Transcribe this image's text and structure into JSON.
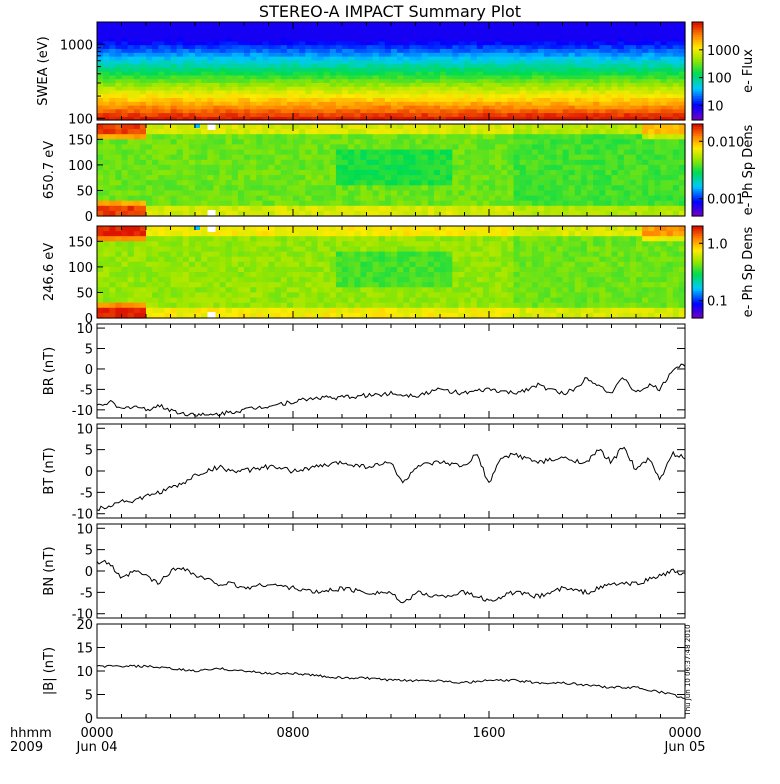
{
  "title": "STEREO-A IMPACT Summary Plot",
  "stamp": "Thu Jun 10 06:37:48 2010",
  "x_axis": {
    "row_label": "hhmm",
    "year_label": "2009",
    "ticks": [
      "0000",
      "0800",
      "1600",
      "0000"
    ],
    "dates": [
      "Jun 04",
      "Jun 05"
    ]
  },
  "chart_data": [
    {
      "type": "heatmap",
      "ylabel": "SWEA (eV)",
      "y_scale": "log",
      "ylim": [
        95,
        2000
      ],
      "yticks": [
        "100",
        "1000"
      ],
      "colorbar_label": "e- Flux",
      "colorbar_ticks": [
        "10",
        "100",
        "1000"
      ],
      "colorbar_range": [
        3,
        10000
      ],
      "description_bands": [
        {
          "energy": 1800,
          "flux": 5
        },
        {
          "energy": 1400,
          "flux": 30
        },
        {
          "energy": 1000,
          "flux": 200
        },
        {
          "energy": 600,
          "flux": 1000
        },
        {
          "energy": 300,
          "flux": 3000
        },
        {
          "energy": 100,
          "flux": 8000
        }
      ]
    },
    {
      "type": "heatmap",
      "ylabel": "650.7 eV",
      "ylim": [
        0,
        180
      ],
      "yticks": [
        "0",
        "50",
        "100",
        "150"
      ],
      "colorbar_label": "e- Ph Sp Dens",
      "colorbar_ticks": [
        "0.001",
        "0.010"
      ],
      "colorbar_range": [
        0.0005,
        0.02
      ]
    },
    {
      "type": "heatmap",
      "ylabel": "246.6 eV",
      "ylim": [
        0,
        180
      ],
      "yticks": [
        "0",
        "50",
        "100",
        "150"
      ],
      "colorbar_label": "e- Ph Sp Dens",
      "colorbar_ticks": [
        "0.1",
        "1.0"
      ],
      "colorbar_range": [
        0.05,
        2.0
      ]
    },
    {
      "type": "line",
      "ylabel": "B_R (nT)",
      "ylim": [
        -12,
        11
      ],
      "yticks": [
        -10,
        -5,
        0,
        5,
        10
      ],
      "xlim": [
        0,
        24
      ],
      "series": [
        {
          "x": [
            0,
            0.5,
            1,
            1.5,
            2,
            2.5,
            3,
            3.5,
            4,
            4.5,
            5,
            5.5,
            6,
            7,
            8,
            9,
            10,
            11,
            12,
            13,
            14,
            15,
            16,
            17,
            18,
            19,
            19.5,
            20,
            20.5,
            21,
            21.5,
            22,
            22.5,
            23,
            23.5,
            24
          ],
          "y": [
            -9,
            -8,
            -10,
            -9,
            -10,
            -9,
            -10,
            -11,
            -11,
            -11.5,
            -11,
            -10.5,
            -10,
            -9,
            -8,
            -7,
            -7,
            -6.5,
            -6,
            -6.5,
            -5,
            -6,
            -5,
            -6,
            -4,
            -6,
            -5,
            -2,
            -4,
            -6,
            -2,
            -6,
            -4,
            -5,
            0,
            1
          ]
        }
      ]
    },
    {
      "type": "line",
      "ylabel": "B_T (nT)",
      "ylim": [
        -11,
        11
      ],
      "yticks": [
        -10,
        -5,
        0,
        5,
        10
      ],
      "xlim": [
        0,
        24
      ],
      "series": [
        {
          "x": [
            0,
            0.5,
            1,
            1.5,
            2,
            2.5,
            3,
            3.5,
            4,
            4.5,
            5,
            5.5,
            6,
            7,
            8,
            9,
            10,
            11,
            12,
            12.5,
            13,
            14,
            15,
            15.5,
            16,
            16.5,
            17,
            18,
            19,
            20,
            20.5,
            21,
            21.5,
            22,
            22.5,
            23,
            23.5,
            24
          ],
          "y": [
            -9,
            -8,
            -7,
            -7,
            -6,
            -5,
            -4,
            -3,
            -1,
            0,
            1,
            0,
            0,
            1,
            0,
            1,
            2,
            1,
            2,
            -3,
            1,
            2,
            1,
            4,
            -3,
            3,
            4,
            2,
            3,
            2,
            5,
            2,
            6,
            0,
            3,
            -2,
            4,
            3
          ]
        }
      ]
    },
    {
      "type": "line",
      "ylabel": "B_N (nT)",
      "ylim": [
        -11,
        11
      ],
      "yticks": [
        -10,
        -5,
        0,
        5,
        10
      ],
      "xlim": [
        0,
        24
      ],
      "series": [
        {
          "x": [
            0,
            0.5,
            1,
            1.5,
            2,
            2.5,
            3,
            3.5,
            4,
            4.5,
            5,
            5.5,
            6,
            7,
            8,
            9,
            10,
            11,
            12,
            12.5,
            13,
            14,
            15,
            16,
            17,
            18,
            19,
            20,
            21,
            22,
            22.5,
            23,
            23.5,
            24
          ],
          "y": [
            2,
            2,
            -2,
            0,
            -1,
            -3,
            0,
            1,
            -1,
            -2,
            -3,
            -3,
            -4,
            -3,
            -4,
            -5,
            -4,
            -5,
            -5,
            -8,
            -5,
            -6,
            -5,
            -7,
            -5,
            -6,
            -4,
            -5,
            -3,
            -3,
            -2,
            -1,
            0,
            -1
          ]
        }
      ]
    },
    {
      "type": "line",
      "ylabel": "|B| (nT)",
      "ylim": [
        0,
        20
      ],
      "yticks": [
        0,
        5,
        10,
        15,
        20
      ],
      "xlim": [
        0,
        24
      ],
      "series": [
        {
          "x": [
            0,
            2,
            3,
            4,
            5,
            6,
            7,
            8,
            9,
            10,
            11,
            12,
            13,
            14,
            15,
            16,
            17,
            18,
            19,
            20,
            21,
            22,
            22.5,
            23,
            23.5,
            24
          ],
          "y": [
            11,
            11,
            10.5,
            10,
            10.5,
            10,
            9.5,
            9.5,
            9,
            8.5,
            8.5,
            8,
            8,
            8,
            7.5,
            8,
            8,
            7.5,
            7.5,
            7,
            6.5,
            6.5,
            6,
            5.5,
            5,
            4
          ]
        }
      ]
    }
  ]
}
